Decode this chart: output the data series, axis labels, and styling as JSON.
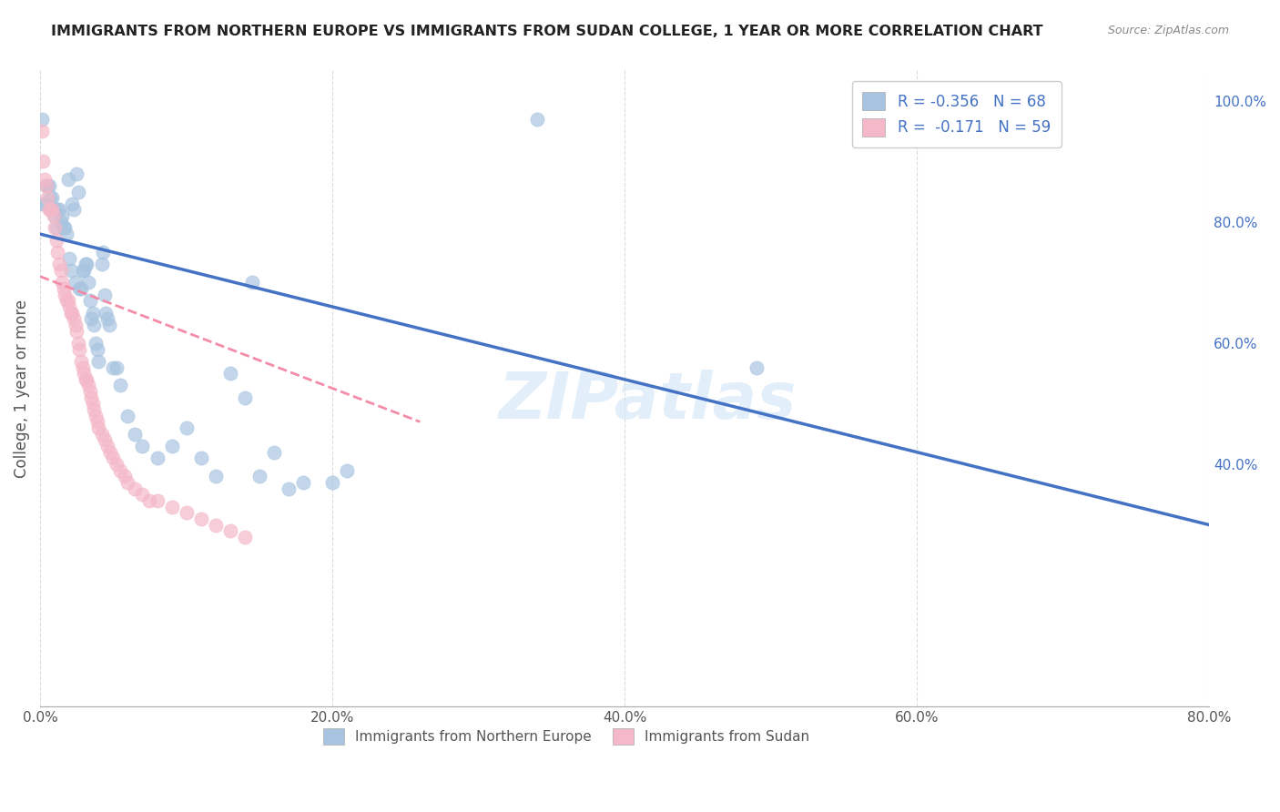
{
  "title": "IMMIGRANTS FROM NORTHERN EUROPE VS IMMIGRANTS FROM SUDAN COLLEGE, 1 YEAR OR MORE CORRELATION CHART",
  "source": "Source: ZipAtlas.com",
  "ylabel": "College, 1 year or more",
  "xlabel": "",
  "xlim": [
    0.0,
    0.8
  ],
  "ylim": [
    0.0,
    1.05
  ],
  "right_ytick_labels": [
    "100.0%",
    "80.0%",
    "60.0%",
    "40.0%"
  ],
  "right_ytick_values": [
    1.0,
    0.8,
    0.6,
    0.4
  ],
  "xtick_labels": [
    "0.0%",
    "20.0%",
    "40.0%",
    "60.0%",
    "80.0%"
  ],
  "xtick_values": [
    0.0,
    0.2,
    0.4,
    0.6,
    0.8
  ],
  "watermark": "ZIPatlas",
  "legend1_label": "R = -0.356   N = 68",
  "legend2_label": "R =  -0.171   N = 59",
  "blue_color": "#a8c4e0",
  "pink_color": "#f4b8c8",
  "blue_line_color": "#4472c4",
  "pink_line_color": "#f48ca8",
  "title_fontsize": 11.5,
  "source_fontsize": 9,
  "legend_fontsize": 12,
  "blue_scatter": [
    [
      0.001,
      0.97
    ],
    [
      0.002,
      0.83
    ],
    [
      0.003,
      0.83
    ],
    [
      0.004,
      0.86
    ],
    [
      0.005,
      0.86
    ],
    [
      0.006,
      0.86
    ],
    [
      0.007,
      0.84
    ],
    [
      0.008,
      0.84
    ],
    [
      0.009,
      0.82
    ],
    [
      0.01,
      0.81
    ],
    [
      0.011,
      0.79
    ],
    [
      0.012,
      0.82
    ],
    [
      0.013,
      0.82
    ],
    [
      0.014,
      0.8
    ],
    [
      0.015,
      0.81
    ],
    [
      0.016,
      0.79
    ],
    [
      0.017,
      0.79
    ],
    [
      0.018,
      0.78
    ],
    [
      0.019,
      0.87
    ],
    [
      0.02,
      0.74
    ],
    [
      0.021,
      0.72
    ],
    [
      0.022,
      0.83
    ],
    [
      0.023,
      0.82
    ],
    [
      0.024,
      0.7
    ],
    [
      0.025,
      0.88
    ],
    [
      0.026,
      0.85
    ],
    [
      0.027,
      0.69
    ],
    [
      0.028,
      0.69
    ],
    [
      0.029,
      0.72
    ],
    [
      0.03,
      0.72
    ],
    [
      0.031,
      0.73
    ],
    [
      0.032,
      0.73
    ],
    [
      0.033,
      0.7
    ],
    [
      0.034,
      0.67
    ],
    [
      0.035,
      0.64
    ],
    [
      0.036,
      0.65
    ],
    [
      0.037,
      0.63
    ],
    [
      0.038,
      0.6
    ],
    [
      0.039,
      0.59
    ],
    [
      0.04,
      0.57
    ],
    [
      0.042,
      0.73
    ],
    [
      0.043,
      0.75
    ],
    [
      0.044,
      0.68
    ],
    [
      0.045,
      0.65
    ],
    [
      0.046,
      0.64
    ],
    [
      0.047,
      0.63
    ],
    [
      0.05,
      0.56
    ],
    [
      0.052,
      0.56
    ],
    [
      0.055,
      0.53
    ],
    [
      0.06,
      0.48
    ],
    [
      0.065,
      0.45
    ],
    [
      0.07,
      0.43
    ],
    [
      0.08,
      0.41
    ],
    [
      0.09,
      0.43
    ],
    [
      0.1,
      0.46
    ],
    [
      0.11,
      0.41
    ],
    [
      0.12,
      0.38
    ],
    [
      0.13,
      0.55
    ],
    [
      0.14,
      0.51
    ],
    [
      0.145,
      0.7
    ],
    [
      0.15,
      0.38
    ],
    [
      0.16,
      0.42
    ],
    [
      0.17,
      0.36
    ],
    [
      0.18,
      0.37
    ],
    [
      0.2,
      0.37
    ],
    [
      0.21,
      0.39
    ],
    [
      0.34,
      0.97
    ],
    [
      0.49,
      0.56
    ]
  ],
  "pink_scatter": [
    [
      0.001,
      0.95
    ],
    [
      0.002,
      0.9
    ],
    [
      0.003,
      0.87
    ],
    [
      0.004,
      0.86
    ],
    [
      0.005,
      0.84
    ],
    [
      0.006,
      0.82
    ],
    [
      0.007,
      0.82
    ],
    [
      0.008,
      0.82
    ],
    [
      0.009,
      0.81
    ],
    [
      0.01,
      0.79
    ],
    [
      0.011,
      0.77
    ],
    [
      0.012,
      0.75
    ],
    [
      0.013,
      0.73
    ],
    [
      0.014,
      0.72
    ],
    [
      0.015,
      0.7
    ],
    [
      0.016,
      0.69
    ],
    [
      0.017,
      0.68
    ],
    [
      0.018,
      0.67
    ],
    [
      0.019,
      0.67
    ],
    [
      0.02,
      0.66
    ],
    [
      0.021,
      0.65
    ],
    [
      0.022,
      0.65
    ],
    [
      0.023,
      0.64
    ],
    [
      0.024,
      0.63
    ],
    [
      0.025,
      0.62
    ],
    [
      0.026,
      0.6
    ],
    [
      0.027,
      0.59
    ],
    [
      0.028,
      0.57
    ],
    [
      0.029,
      0.56
    ],
    [
      0.03,
      0.55
    ],
    [
      0.031,
      0.54
    ],
    [
      0.032,
      0.54
    ],
    [
      0.033,
      0.53
    ],
    [
      0.034,
      0.52
    ],
    [
      0.035,
      0.51
    ],
    [
      0.036,
      0.5
    ],
    [
      0.037,
      0.49
    ],
    [
      0.038,
      0.48
    ],
    [
      0.039,
      0.47
    ],
    [
      0.04,
      0.46
    ],
    [
      0.042,
      0.45
    ],
    [
      0.044,
      0.44
    ],
    [
      0.046,
      0.43
    ],
    [
      0.048,
      0.42
    ],
    [
      0.05,
      0.41
    ],
    [
      0.052,
      0.4
    ],
    [
      0.055,
      0.39
    ],
    [
      0.058,
      0.38
    ],
    [
      0.06,
      0.37
    ],
    [
      0.065,
      0.36
    ],
    [
      0.07,
      0.35
    ],
    [
      0.075,
      0.34
    ],
    [
      0.08,
      0.34
    ],
    [
      0.09,
      0.33
    ],
    [
      0.1,
      0.32
    ],
    [
      0.11,
      0.31
    ],
    [
      0.12,
      0.3
    ],
    [
      0.13,
      0.29
    ],
    [
      0.14,
      0.28
    ]
  ],
  "blue_trendline": [
    [
      0.0,
      0.78
    ],
    [
      0.8,
      0.3
    ]
  ],
  "pink_trendline": [
    [
      0.0,
      0.71
    ],
    [
      0.26,
      0.47
    ]
  ]
}
